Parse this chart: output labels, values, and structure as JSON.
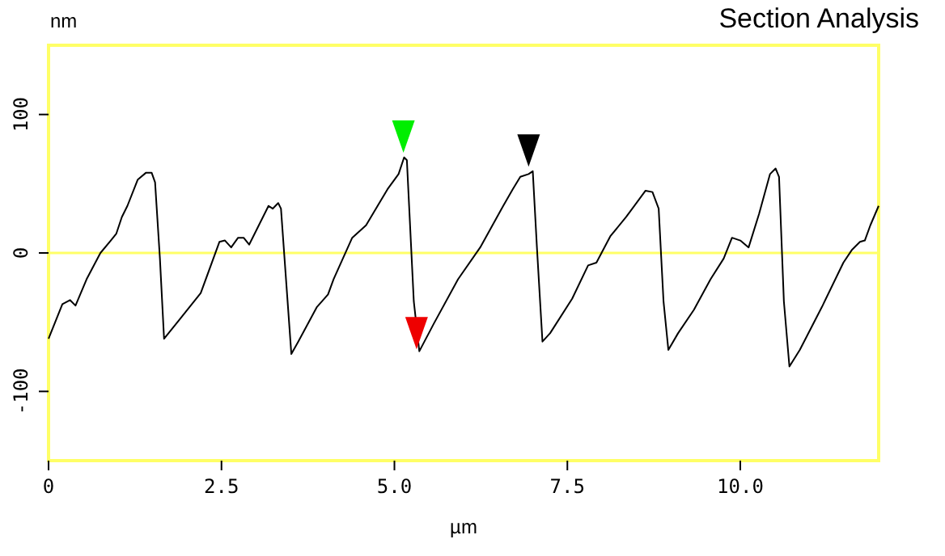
{
  "chart_data": {
    "type": "line",
    "title": "Section Analysis",
    "xlabel": "µm",
    "ylabel": "nm",
    "xlim": [
      0,
      12
    ],
    "xticks": [
      0,
      2.5,
      {
        "value": 5,
        "label": "5.0"
      },
      7.5,
      {
        "value": 10,
        "label": "10.0"
      }
    ],
    "ylim": [
      -150,
      150
    ],
    "yticks": [
      -100,
      0,
      100
    ],
    "grid": false,
    "ref_lines": [
      {
        "axis": "y",
        "value": 0,
        "color": "#ffff66"
      }
    ],
    "series": [
      {
        "color": "#000000",
        "x": [
          0,
          0.2,
          0.31,
          0.39,
          0.55,
          0.75,
          0.9,
          0.98,
          1.06,
          1.14,
          1.29,
          1.41,
          1.49,
          1.54,
          1.61,
          1.67,
          1.88,
          2.2,
          2.47,
          2.55,
          2.64,
          2.74,
          2.82,
          2.9,
          3.18,
          3.24,
          3.32,
          3.36,
          3.45,
          3.51,
          3.61,
          3.88,
          4.04,
          4.12,
          4.39,
          4.59,
          4.9,
          5.06,
          5.14,
          5.18,
          5.28,
          5.36,
          5.57,
          5.92,
          6.24,
          6.55,
          6.71,
          6.82,
          6.94,
          7.0,
          7.06,
          7.14,
          7.25,
          7.57,
          7.8,
          7.92,
          8.12,
          8.35,
          8.63,
          8.73,
          8.82,
          8.89,
          8.96,
          9.1,
          9.33,
          9.57,
          9.76,
          9.88,
          10.0,
          10.12,
          10.27,
          10.43,
          10.51,
          10.56,
          10.63,
          10.71,
          10.86,
          11.18,
          11.49,
          11.61,
          11.73,
          11.8,
          11.88,
          12.0
        ],
        "values": [
          -62,
          -37,
          -34,
          -38,
          -19,
          0,
          9,
          14,
          26,
          34,
          53,
          58,
          58,
          51,
          -4,
          -62,
          -49,
          -29,
          8,
          9,
          4,
          11,
          11,
          6,
          34,
          32,
          36,
          32,
          -31,
          -73,
          -64,
          -39,
          -30,
          -19,
          11,
          20,
          46,
          57,
          69,
          67,
          -35,
          -71,
          -51,
          -19,
          4,
          32,
          46,
          55,
          57,
          59,
          4,
          -64,
          -58,
          -33,
          -9,
          -7,
          12,
          26,
          45,
          44,
          32,
          -35,
          -70,
          -58,
          -41,
          -19,
          -4,
          11,
          9,
          4,
          28,
          57,
          61,
          55,
          -35,
          -82,
          -70,
          -39,
          -7,
          2,
          8,
          9,
          20,
          34
        ]
      },
      {
        "type": "scatter",
        "marker": "triangle",
        "x": [
          5.13,
          5.32,
          6.94
        ],
        "values": [
          84,
          -58,
          74
        ],
        "colors": [
          "#00ee00",
          "#ee0000",
          "#000000"
        ]
      }
    ]
  }
}
